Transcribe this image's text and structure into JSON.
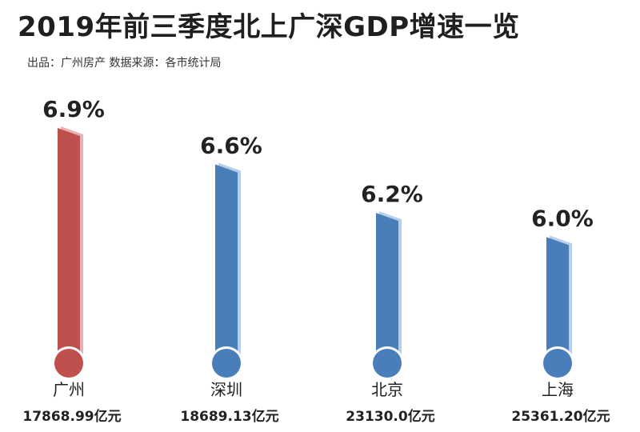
{
  "header": {
    "title": "2019年前三季度北上广深GDP增速一览",
    "subtitle": "出品：广州房产  数据来源：各市统计局"
  },
  "colors": {
    "highlight": "#c0504d",
    "highlight_shadow": "#e8b0b2",
    "default": "#4a7ebb",
    "default_shadow": "#b8cfea"
  },
  "chart_data": {
    "type": "bar",
    "categories": [
      "广州",
      "深圳",
      "北京",
      "上海"
    ],
    "values": [
      6.9,
      6.6,
      6.2,
      6.0
    ],
    "value_labels": [
      "6.9%",
      "6.6%",
      "6.2%",
      "6.0%"
    ],
    "gdp_labels": [
      "17868.99亿元",
      "18689.13亿元",
      "23130.0亿元",
      "25361.20亿元"
    ],
    "highlight_index": 0,
    "title": "2019年前三季度北上广深GDP增速一览",
    "ylabel": "",
    "xlabel": "",
    "ylim": [
      5.0,
      6.9
    ],
    "grid": false
  }
}
